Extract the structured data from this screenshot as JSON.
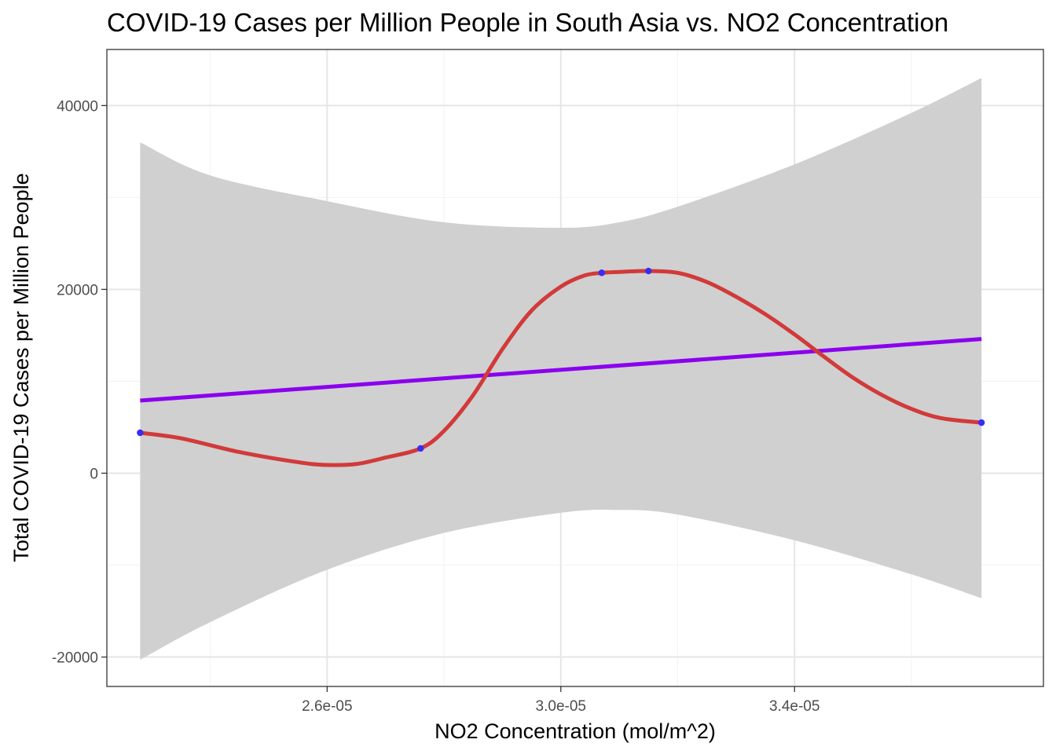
{
  "chart_data": {
    "type": "scatter",
    "title": "COVID-19 Cases per Million People in South Asia vs. NO2 Concentration",
    "xlabel": "NO2 Concentration (mol/m^2)",
    "ylabel": "Total COVID-19 Cases per Million People",
    "xlim": [
      2.223e-05,
      3.826e-05
    ],
    "ylim": [
      -23200,
      46100
    ],
    "x_ticks": [
      {
        "value": 2.6e-05,
        "label": "2.6e-05"
      },
      {
        "value": 3e-05,
        "label": "3.0e-05"
      },
      {
        "value": 3.4e-05,
        "label": "3.4e-05"
      }
    ],
    "x_minor_ticks": [
      2.4e-05,
      2.8e-05,
      3.2e-05,
      3.6e-05
    ],
    "y_ticks": [
      {
        "value": -20000,
        "label": "-20000"
      },
      {
        "value": 0,
        "label": "0"
      },
      {
        "value": 20000,
        "label": "20000"
      },
      {
        "value": 40000,
        "label": "40000"
      }
    ],
    "y_minor_ticks": [
      -10000,
      10000,
      30000
    ],
    "grid": true,
    "points": {
      "x": [
        2.28e-05,
        2.76e-05,
        3.07e-05,
        3.15e-05,
        3.72e-05
      ],
      "y": [
        4400,
        2700,
        21800,
        22000,
        5500
      ]
    },
    "linear_fit": {
      "x": [
        2.28e-05,
        3.72e-05
      ],
      "y": [
        7900,
        14600
      ]
    },
    "confidence_band": {
      "x": [
        2.28e-05,
        2.4e-05,
        2.6e-05,
        2.8e-05,
        3e-05,
        3.1e-05,
        3.2e-05,
        3.4e-05,
        3.6e-05,
        3.72e-05
      ],
      "upper": [
        36000,
        32400,
        29600,
        27300,
        26700,
        27300,
        29000,
        33600,
        39200,
        43000
      ],
      "lower": [
        -20300,
        -16200,
        -10500,
        -6500,
        -4300,
        -4000,
        -4500,
        -7300,
        -11000,
        -13600
      ]
    },
    "smooth_curve": {
      "x": [
        2.28e-05,
        2.35e-05,
        2.45e-05,
        2.55e-05,
        2.6e-05,
        2.65e-05,
        2.7e-05,
        2.76e-05,
        2.8e-05,
        2.85e-05,
        2.9e-05,
        2.95e-05,
        3e-05,
        3.04e-05,
        3.07e-05,
        3.1e-05,
        3.15e-05,
        3.2e-05,
        3.25e-05,
        3.3e-05,
        3.35e-05,
        3.4e-05,
        3.45e-05,
        3.5e-05,
        3.55e-05,
        3.6e-05,
        3.65e-05,
        3.72e-05
      ],
      "y": [
        4400,
        3800,
        2300,
        1200,
        900,
        1000,
        1700,
        2700,
        4600,
        8500,
        13500,
        17700,
        20300,
        21500,
        21800,
        21900,
        22000,
        21800,
        20800,
        19200,
        17300,
        15100,
        12700,
        10400,
        8500,
        7000,
        6000,
        5500
      ]
    },
    "colors": {
      "points": "#3b2cf0",
      "linear_fit": "#8b00ee",
      "smooth_curve": "#d23a3a",
      "confidence_band": "#d0d0d0",
      "grid_major": "#e6e6e6",
      "grid_minor": "#f2f2f2"
    }
  }
}
